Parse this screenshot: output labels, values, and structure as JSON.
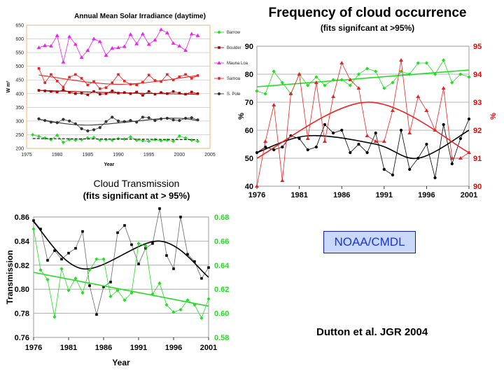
{
  "irradiance": {
    "title": "Annual Mean Solar Irradiance (daytime)",
    "ylabel": "W m²",
    "xlabel": "Year",
    "xticks": [
      "1975",
      "1980",
      "1985",
      "1990",
      "1995",
      "2000",
      "2005"
    ],
    "yticks": [
      "200",
      "250",
      "300",
      "350",
      "400",
      "450",
      "500",
      "550",
      "600",
      "650"
    ],
    "legend": [
      {
        "name": "Barrow",
        "color": "#22dd22"
      },
      {
        "name": "Boulder",
        "color": "#aa0000"
      },
      {
        "name": "Mauna Loa",
        "color": "#ee22ee"
      },
      {
        "name": "Samoa",
        "color": "#ee2222"
      },
      {
        "name": "S. Pole",
        "color": "#333333"
      }
    ]
  },
  "frequency": {
    "title": "Frequency of cloud occurrence",
    "subtitle": "(fits signifcant at >95%)",
    "ylabel_left": "%",
    "ylabel_right": "%",
    "xticks": [
      "1976",
      "1981",
      "1986",
      "1991",
      "1996",
      "2001"
    ],
    "yticks_left": [
      "40",
      "50",
      "60",
      "70",
      "80",
      "90"
    ],
    "yticks_right": [
      "90",
      "91",
      "92",
      "93",
      "94",
      "95"
    ]
  },
  "transmission": {
    "title": "Cloud Transmission",
    "subtitle": "(fits significant at > 95%)",
    "ylabel": "Transmission",
    "xlabel": "Year",
    "xticks": [
      "1976",
      "1981",
      "1986",
      "1991",
      "1996",
      "2001"
    ],
    "yticks_left": [
      "0.76",
      "0.78",
      "0.80",
      "0.82",
      "0.84",
      "0.86"
    ],
    "yticks_right": [
      "0.58",
      "0.60",
      "0.62",
      "0.64",
      "0.66",
      "0.68"
    ]
  },
  "badge": "NOAA/CMDL",
  "citation": "Dutton et al. JGR 2004",
  "chart_data": [
    {
      "type": "line",
      "title": "Annual Mean Solar Irradiance (daytime)",
      "xlabel": "Year",
      "ylabel": "W m²",
      "xlim": [
        1975,
        2005
      ],
      "ylim": [
        200,
        650
      ],
      "grid": true,
      "legend": "right",
      "series": [
        {
          "name": "Barrow",
          "color": "#22dd22",
          "x": [
            1976,
            1977,
            1978,
            1979,
            1980,
            1981,
            1982,
            1983,
            1984,
            1985,
            1986,
            1987,
            1988,
            1989,
            1990,
            1991,
            1992,
            1993,
            1994,
            1995,
            1996,
            1997,
            1998,
            1999,
            2000,
            2001,
            2002,
            2003
          ],
          "y": [
            250,
            244,
            238,
            232,
            248,
            222,
            232,
            230,
            232,
            238,
            240,
            230,
            232,
            230,
            236,
            234,
            242,
            230,
            228,
            226,
            232,
            228,
            230,
            226,
            245,
            238,
            230,
            226
          ],
          "fit": [
            [
              1976,
              236
            ],
            [
              1990,
              234
            ],
            [
              2003,
              232
            ]
          ]
        },
        {
          "name": "Boulder",
          "color": "#aa0000",
          "x": [
            1977,
            1978,
            1979,
            1980,
            1981,
            1982,
            1983,
            1984,
            1985,
            1986,
            1987,
            1988,
            1989,
            1990,
            1991,
            1992,
            1993,
            1994,
            1995,
            1996,
            1997,
            1998,
            1999,
            2000,
            2001,
            2002,
            2003
          ],
          "y": [
            412,
            410,
            408,
            406,
            414,
            405,
            400,
            402,
            396,
            408,
            398,
            400,
            410,
            402,
            404,
            400,
            406,
            394,
            408,
            398,
            404,
            400,
            408,
            402,
            398,
            406,
            400
          ],
          "fit": [
            [
              1977,
              412
            ],
            [
              1990,
              403
            ],
            [
              2003,
              398
            ]
          ]
        },
        {
          "name": "Mauna Loa",
          "color": "#ee22ee",
          "x": [
            1977,
            1978,
            1979,
            1980,
            1981,
            1982,
            1983,
            1984,
            1985,
            1986,
            1987,
            1988,
            1989,
            1990,
            1991,
            1992,
            1993,
            1994,
            1995,
            1996,
            1997,
            1998,
            1999,
            2000,
            2001,
            2002,
            2003
          ],
          "y": [
            568,
            576,
            574,
            612,
            515,
            608,
            580,
            532,
            558,
            600,
            590,
            540,
            566,
            568,
            572,
            616,
            582,
            618,
            580,
            596,
            634,
            622,
            584,
            574,
            558,
            618,
            612
          ]
        },
        {
          "name": "Samoa",
          "color": "#ee2222",
          "x": [
            1977,
            1978,
            1979,
            1980,
            1981,
            1982,
            1983,
            1984,
            1985,
            1986,
            1987,
            1988,
            1989,
            1990,
            1991,
            1992,
            1993,
            1994,
            1995,
            1996,
            1997,
            1998,
            1999,
            2000,
            2001,
            2002,
            2003
          ],
          "y": [
            492,
            440,
            470,
            446,
            424,
            460,
            470,
            456,
            432,
            444,
            418,
            422,
            440,
            470,
            446,
            434,
            432,
            442,
            468,
            448,
            444,
            470,
            450,
            462,
            470,
            456,
            466
          ],
          "fit": [
            [
              1977,
              468
            ],
            [
              1990,
              434
            ],
            [
              2003,
              466
            ]
          ]
        },
        {
          "name": "S. Pole",
          "color": "#333333",
          "x": [
            1977,
            1978,
            1979,
            1980,
            1981,
            1982,
            1983,
            1984,
            1985,
            1986,
            1987,
            1988,
            1989,
            1990,
            1991,
            1992,
            1993,
            1994,
            1995,
            1996,
            1997,
            1998,
            1999,
            2000,
            2001,
            2002,
            2003
          ],
          "y": [
            308,
            302,
            296,
            294,
            306,
            300,
            290,
            272,
            264,
            268,
            276,
            298,
            314,
            300,
            298,
            302,
            296,
            314,
            312,
            302,
            308,
            310,
            304,
            302,
            310,
            312,
            304
          ],
          "fit": [
            [
              1977,
              306
            ],
            [
              1985,
              285
            ],
            [
              1998,
              310
            ],
            [
              2003,
              302
            ]
          ]
        }
      ]
    },
    {
      "type": "line",
      "title": "Frequency of cloud occurrence",
      "subtitle": "(fits signifcant at >95%)",
      "xlim": [
        1976,
        2001
      ],
      "ylim_left": [
        40,
        90
      ],
      "ylim_right": [
        90,
        95
      ],
      "ylabel_left": "%",
      "ylabel_right": "%",
      "grid": true,
      "series": [
        {
          "color": "#22dd22",
          "axis": "left",
          "x": [
            1976,
            1977,
            1978,
            1979,
            1980,
            1981,
            1982,
            1983,
            1984,
            1985,
            1986,
            1987,
            1988,
            1989,
            1990,
            1991,
            1992,
            1993,
            1994,
            1995,
            1996,
            1997,
            1998,
            1999,
            2000,
            2001
          ],
          "y": [
            74,
            73,
            81,
            77,
            73,
            80,
            76,
            79,
            76,
            78,
            78,
            76,
            80,
            82,
            81,
            75,
            77,
            81,
            80,
            84,
            84,
            80,
            85,
            77,
            80,
            79
          ],
          "fit": [
            [
              1976,
              75.5
            ],
            [
              2001,
              81.5
            ]
          ]
        },
        {
          "color": "#000000",
          "axis": "left",
          "x": [
            1976,
            1977,
            1978,
            1979,
            1980,
            1981,
            1982,
            1983,
            1984,
            1985,
            1986,
            1987,
            1988,
            1989,
            1990,
            1991,
            1992,
            1993,
            1994,
            1995,
            1996,
            1997,
            1998,
            1999,
            2000,
            2001
          ],
          "y": [
            52,
            54,
            53,
            54,
            58,
            57,
            53,
            54,
            62,
            59,
            60,
            52,
            55,
            52,
            59,
            46,
            44,
            60,
            46,
            50,
            55,
            43,
            62,
            48,
            57,
            64
          ],
          "fit": [
            [
              1976,
              52
            ],
            [
              1982,
              58
            ],
            [
              1990,
              55
            ],
            [
              1995,
              50
            ],
            [
              2001,
              60
            ]
          ]
        },
        {
          "color": "#ee2222",
          "axis": "right",
          "x": [
            1976,
            1977,
            1978,
            1979,
            1980,
            1981,
            1982,
            1983,
            1984,
            1985,
            1986,
            1987,
            1988,
            1989,
            1990,
            1991,
            1992,
            1993,
            1994,
            1995,
            1996,
            1997,
            1998,
            1999,
            2000,
            2001
          ],
          "y": [
            90.0,
            91.6,
            92.9,
            90.2,
            93.3,
            94.0,
            91.7,
            93.7,
            91.6,
            93.2,
            94.4,
            93.8,
            93.5,
            91.8,
            91.6,
            91.6,
            92.7,
            94.5,
            91.9,
            93.2,
            92.7,
            92.0,
            93.5,
            91.0,
            91.0,
            91.2
          ],
          "fit": [
            [
              1976,
              91.0
            ],
            [
              1989,
              93.0
            ],
            [
              2001,
              91.2
            ]
          ]
        }
      ]
    },
    {
      "type": "line",
      "title": "Cloud Transmission",
      "subtitle": "(fits significant at > 95%)",
      "xlabel": "Year",
      "ylabel": "Transmission",
      "xlim": [
        1976,
        2001
      ],
      "ylim_left": [
        0.76,
        0.86
      ],
      "ylim_right": [
        0.58,
        0.68
      ],
      "grid": true,
      "series": [
        {
          "color": "#000000",
          "axis": "left",
          "x": [
            1976,
            1977,
            1978,
            1979,
            1980,
            1981,
            1982,
            1983,
            1984,
            1985,
            1986,
            1987,
            1988,
            1989,
            1990,
            1991,
            1992,
            1993,
            1994,
            1995,
            1996,
            1997,
            1998,
            1999,
            2000,
            2001
          ],
          "y": [
            0.857,
            0.85,
            0.824,
            0.832,
            0.825,
            0.83,
            0.834,
            0.848,
            0.803,
            0.779,
            0.802,
            0.806,
            0.847,
            0.853,
            0.837,
            0.821,
            0.834,
            0.838,
            0.867,
            0.828,
            0.817,
            0.86,
            0.829,
            0.823,
            0.809,
            0.818
          ],
          "fit": [
            [
              1976,
              0.856
            ],
            [
              1983,
              0.817
            ],
            [
              1994,
              0.84
            ],
            [
              2001,
              0.81
            ]
          ]
        },
        {
          "color": "#22dd22",
          "axis": "right",
          "x": [
            1976,
            1977,
            1978,
            1979,
            1980,
            1981,
            1982,
            1983,
            1984,
            1985,
            1986,
            1987,
            1988,
            1989,
            1990,
            1991,
            1992,
            1993,
            1994,
            1995,
            1996,
            1997,
            1998,
            1999,
            2000,
            2001
          ],
          "y": [
            0.67,
            0.636,
            0.628,
            0.597,
            0.637,
            0.619,
            0.629,
            0.617,
            0.636,
            0.645,
            0.645,
            0.614,
            0.619,
            0.611,
            0.617,
            0.658,
            0.656,
            0.616,
            0.625,
            0.607,
            0.601,
            0.603,
            0.611,
            0.607,
            0.596,
            0.612
          ],
          "fit": [
            [
              1976,
              0.634
            ],
            [
              2001,
              0.606
            ]
          ]
        }
      ]
    }
  ]
}
